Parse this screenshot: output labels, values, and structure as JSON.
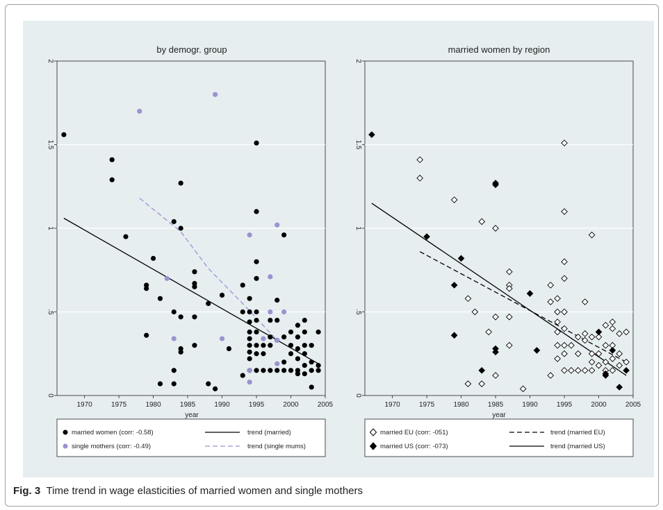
{
  "caption": {
    "label": "Fig. 3",
    "text": "Time trend in wage elasticities of married women and single mothers"
  },
  "colors": {
    "background": "#e6eef0",
    "married": "#000000",
    "single": "#9a93d0",
    "grid": "#ffffff"
  },
  "chart_data": [
    {
      "type": "scatter",
      "title": "by demogr. group",
      "xlabel": "year",
      "ylabel": "",
      "xlim": [
        1966,
        2005
      ],
      "ylim": [
        0,
        2
      ],
      "x_ticks": [
        "1970",
        "1975",
        "1980",
        "1985",
        "1990",
        "1995",
        "2000",
        "2005"
      ],
      "x_tick_values": [
        1970,
        1975,
        1980,
        1985,
        1990,
        1995,
        2000,
        2005
      ],
      "y_ticks": [
        "0",
        ".5",
        "1",
        "1.5",
        "2"
      ],
      "y_tick_values": [
        0,
        0.5,
        1,
        1.5,
        2
      ],
      "legend_position": "bottom",
      "series": [
        {
          "name": "married women (corr: -0.58)",
          "kind": "scatter",
          "marker": "dot",
          "color": "#000000",
          "points": [
            [
              1967,
              1.56
            ],
            [
              1974,
              1.41
            ],
            [
              1974,
              1.29
            ],
            [
              1976,
              0.95
            ],
            [
              1979,
              0.66
            ],
            [
              1979,
              0.64
            ],
            [
              1979,
              0.36
            ],
            [
              1980,
              0.82
            ],
            [
              1981,
              0.58
            ],
            [
              1981,
              0.07
            ],
            [
              1983,
              1.04
            ],
            [
              1983,
              0.5
            ],
            [
              1983,
              0.15
            ],
            [
              1983,
              0.07
            ],
            [
              1984,
              1.27
            ],
            [
              1984,
              1.0
            ],
            [
              1984,
              0.47
            ],
            [
              1984,
              0.28
            ],
            [
              1984,
              0.26
            ],
            [
              1986,
              0.74
            ],
            [
              1986,
              0.67
            ],
            [
              1986,
              0.65
            ],
            [
              1986,
              0.47
            ],
            [
              1986,
              0.3
            ],
            [
              1988,
              0.55
            ],
            [
              1988,
              0.07
            ],
            [
              1989,
              0.04
            ],
            [
              1990,
              0.6
            ],
            [
              1991,
              0.28
            ],
            [
              1993,
              0.66
            ],
            [
              1993,
              0.5
            ],
            [
              1993,
              0.12
            ],
            [
              1994,
              0.58
            ],
            [
              1994,
              0.5
            ],
            [
              1994,
              0.44
            ],
            [
              1994,
              0.38
            ],
            [
              1994,
              0.34
            ],
            [
              1994,
              0.3
            ],
            [
              1994,
              0.26
            ],
            [
              1994,
              0.22
            ],
            [
              1994,
              0.15
            ],
            [
              1995,
              1.51
            ],
            [
              1995,
              1.1
            ],
            [
              1995,
              0.8
            ],
            [
              1995,
              0.7
            ],
            [
              1995,
              0.5
            ],
            [
              1995,
              0.45
            ],
            [
              1995,
              0.38
            ],
            [
              1995,
              0.3
            ],
            [
              1995,
              0.25
            ],
            [
              1995,
              0.15
            ],
            [
              1996,
              0.3
            ],
            [
              1996,
              0.25
            ],
            [
              1996,
              0.15
            ],
            [
              1997,
              0.45
            ],
            [
              1997,
              0.35
            ],
            [
              1997,
              0.3
            ],
            [
              1997,
              0.15
            ],
            [
              1998,
              0.57
            ],
            [
              1998,
              0.45
            ],
            [
              1998,
              0.33
            ],
            [
              1998,
              0.15
            ],
            [
              1999,
              0.96
            ],
            [
              1999,
              0.35
            ],
            [
              1999,
              0.2
            ],
            [
              1999,
              0.15
            ],
            [
              2000,
              0.38
            ],
            [
              2000,
              0.3
            ],
            [
              2000,
              0.25
            ],
            [
              2000,
              0.15
            ],
            [
              2001,
              0.42
            ],
            [
              2001,
              0.35
            ],
            [
              2001,
              0.28
            ],
            [
              2001,
              0.22
            ],
            [
              2001,
              0.15
            ],
            [
              2001,
              0.13
            ],
            [
              2002,
              0.45
            ],
            [
              2002,
              0.38
            ],
            [
              2002,
              0.3
            ],
            [
              2002,
              0.25
            ],
            [
              2002,
              0.18
            ],
            [
              2002,
              0.13
            ],
            [
              2003,
              0.3
            ],
            [
              2003,
              0.2
            ],
            [
              2003,
              0.15
            ],
            [
              2003,
              0.05
            ],
            [
              2004,
              0.38
            ],
            [
              2004,
              0.18
            ],
            [
              2004,
              0.15
            ]
          ]
        },
        {
          "name": "single mothers (corr: -0.49)",
          "kind": "scatter",
          "marker": "dot",
          "color": "#9a93d0",
          "points": [
            [
              1978,
              1.7
            ],
            [
              1982,
              0.7
            ],
            [
              1983,
              0.34
            ],
            [
              1989,
              1.8
            ],
            [
              1990,
              0.34
            ],
            [
              1994,
              0.96
            ],
            [
              1994,
              0.08
            ],
            [
              1994,
              0.15
            ],
            [
              1996,
              0.34
            ],
            [
              1997,
              0.71
            ],
            [
              1997,
              0.5
            ],
            [
              1998,
              0.33
            ],
            [
              1998,
              1.02
            ],
            [
              1998,
              0.19
            ],
            [
              1999,
              0.5
            ]
          ]
        },
        {
          "name": "trend (married)",
          "kind": "line",
          "style": "solid",
          "color": "#000000",
          "points": [
            [
              1967,
              1.06
            ],
            [
              2004,
              0.19
            ]
          ]
        },
        {
          "name": "trend (single mums)",
          "kind": "line",
          "style": "dashed",
          "color": "#9a93d0",
          "points": [
            [
              1978,
              1.18
            ],
            [
              1984,
              0.98
            ],
            [
              1988,
              0.76
            ],
            [
              1993,
              0.55
            ],
            [
              1998,
              0.33
            ]
          ]
        }
      ]
    },
    {
      "type": "scatter",
      "title": "married women by region",
      "xlabel": "year",
      "ylabel": "",
      "xlim": [
        1966,
        2005
      ],
      "ylim": [
        0,
        2
      ],
      "x_ticks": [
        "1970",
        "1975",
        "1980",
        "1985",
        "1990",
        "1995",
        "2000",
        "2005"
      ],
      "x_tick_values": [
        1970,
        1975,
        1980,
        1985,
        1990,
        1995,
        2000,
        2005
      ],
      "y_ticks": [
        "0",
        ".5",
        "1",
        "1.5",
        "2"
      ],
      "y_tick_values": [
        0,
        0.5,
        1,
        1.5,
        2
      ],
      "legend_position": "bottom",
      "series": [
        {
          "name": "married EU (corr: -051)",
          "kind": "scatter",
          "marker": "hollow-diamond",
          "color": "#000000",
          "points": [
            [
              1974,
              1.41
            ],
            [
              1974,
              1.3
            ],
            [
              1979,
              1.17
            ],
            [
              1981,
              0.58
            ],
            [
              1981,
              0.07
            ],
            [
              1982,
              0.5
            ],
            [
              1983,
              1.04
            ],
            [
              1983,
              0.07
            ],
            [
              1984,
              0.38
            ],
            [
              1985,
              1.0
            ],
            [
              1985,
              0.47
            ],
            [
              1985,
              0.12
            ],
            [
              1987,
              0.74
            ],
            [
              1987,
              0.66
            ],
            [
              1987,
              0.64
            ],
            [
              1987,
              0.47
            ],
            [
              1987,
              0.3
            ],
            [
              1989,
              0.04
            ],
            [
              1993,
              0.66
            ],
            [
              1993,
              0.56
            ],
            [
              1993,
              0.12
            ],
            [
              1994,
              0.58
            ],
            [
              1994,
              0.5
            ],
            [
              1994,
              0.44
            ],
            [
              1994,
              0.38
            ],
            [
              1994,
              0.3
            ],
            [
              1994,
              0.22
            ],
            [
              1995,
              1.51
            ],
            [
              1995,
              1.1
            ],
            [
              1995,
              0.8
            ],
            [
              1995,
              0.7
            ],
            [
              1995,
              0.5
            ],
            [
              1995,
              0.4
            ],
            [
              1995,
              0.3
            ],
            [
              1995,
              0.25
            ],
            [
              1995,
              0.15
            ],
            [
              1996,
              0.3
            ],
            [
              1996,
              0.15
            ],
            [
              1997,
              0.35
            ],
            [
              1997,
              0.25
            ],
            [
              1997,
              0.15
            ],
            [
              1998,
              0.56
            ],
            [
              1998,
              0.37
            ],
            [
              1998,
              0.33
            ],
            [
              1998,
              0.15
            ],
            [
              1999,
              0.96
            ],
            [
              1999,
              0.35
            ],
            [
              1999,
              0.25
            ],
            [
              1999,
              0.2
            ],
            [
              1999,
              0.15
            ],
            [
              2000,
              0.35
            ],
            [
              2000,
              0.25
            ],
            [
              2000,
              0.18
            ],
            [
              2001,
              0.42
            ],
            [
              2001,
              0.3
            ],
            [
              2001,
              0.2
            ],
            [
              2001,
              0.15
            ],
            [
              2002,
              0.44
            ],
            [
              2002,
              0.4
            ],
            [
              2002,
              0.3
            ],
            [
              2002,
              0.22
            ],
            [
              2002,
              0.15
            ],
            [
              2003,
              0.37
            ],
            [
              2003,
              0.25
            ],
            [
              2003,
              0.18
            ],
            [
              2004,
              0.38
            ],
            [
              2004,
              0.2
            ]
          ]
        },
        {
          "name": "married US (corr: -073)",
          "kind": "scatter",
          "marker": "filled-diamond",
          "color": "#000000",
          "points": [
            [
              1967,
              1.56
            ],
            [
              1975,
              0.95
            ],
            [
              1979,
              0.66
            ],
            [
              1979,
              0.36
            ],
            [
              1980,
              0.82
            ],
            [
              1983,
              0.15
            ],
            [
              1985,
              1.27
            ],
            [
              1985,
              1.26
            ],
            [
              1985,
              0.28
            ],
            [
              1985,
              0.26
            ],
            [
              1990,
              0.61
            ],
            [
              1991,
              0.27
            ],
            [
              2000,
              0.38
            ],
            [
              2001,
              0.13
            ],
            [
              2001,
              0.12
            ],
            [
              2002,
              0.27
            ],
            [
              2003,
              0.05
            ],
            [
              2004,
              0.15
            ]
          ]
        },
        {
          "name": "trend (married EU)",
          "kind": "line",
          "style": "dashed",
          "color": "#000000",
          "points": [
            [
              1974,
              0.86
            ],
            [
              2004,
              0.2
            ]
          ]
        },
        {
          "name": "trend (married US)",
          "kind": "line",
          "style": "solid",
          "color": "#000000",
          "points": [
            [
              1967,
              1.15
            ],
            [
              2004,
              0.12
            ]
          ]
        }
      ]
    }
  ]
}
